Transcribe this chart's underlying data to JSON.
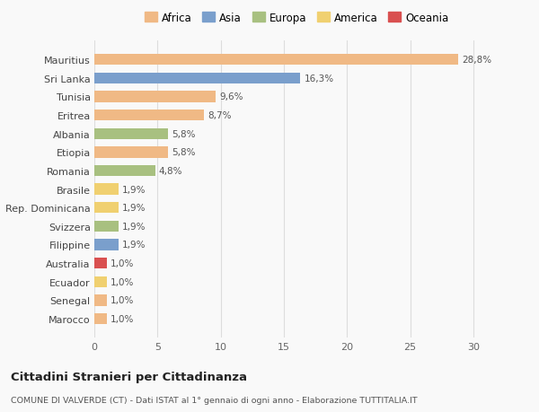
{
  "countries": [
    "Mauritius",
    "Sri Lanka",
    "Tunisia",
    "Eritrea",
    "Albania",
    "Etiopia",
    "Romania",
    "Brasile",
    "Rep. Dominicana",
    "Svizzera",
    "Filippine",
    "Australia",
    "Ecuador",
    "Senegal",
    "Marocco"
  ],
  "values": [
    28.8,
    16.3,
    9.6,
    8.7,
    5.8,
    5.8,
    4.8,
    1.9,
    1.9,
    1.9,
    1.9,
    1.0,
    1.0,
    1.0,
    1.0
  ],
  "percentages": [
    "28,8%",
    "16,3%",
    "9,6%",
    "8,7%",
    "5,8%",
    "5,8%",
    "4,8%",
    "1,9%",
    "1,9%",
    "1,9%",
    "1,9%",
    "1,0%",
    "1,0%",
    "1,0%",
    "1,0%"
  ],
  "continents": [
    "Africa",
    "Asia",
    "Africa",
    "Africa",
    "Europa",
    "Africa",
    "Europa",
    "America",
    "America",
    "Europa",
    "Asia",
    "Oceania",
    "America",
    "Africa",
    "Africa"
  ],
  "continent_colors": {
    "Africa": "#F0B985",
    "Asia": "#7A9FCC",
    "Europa": "#A8C080",
    "America": "#F0D070",
    "Oceania": "#D95050"
  },
  "legend_order": [
    "Africa",
    "Asia",
    "Europa",
    "America",
    "Oceania"
  ],
  "legend_colors": [
    "#F0B985",
    "#7A9FCC",
    "#A8C080",
    "#F0D070",
    "#D95050"
  ],
  "title": "Cittadini Stranieri per Cittadinanza",
  "subtitle": "COMUNE DI VALVERDE (CT) - Dati ISTAT al 1° gennaio di ogni anno - Elaborazione TUTTITALIA.IT",
  "xlim": [
    0,
    32
  ],
  "xticks": [
    0,
    5,
    10,
    15,
    20,
    25,
    30
  ],
  "background_color": "#f9f9f9",
  "bar_height": 0.6,
  "grid_color": "#dddddd"
}
